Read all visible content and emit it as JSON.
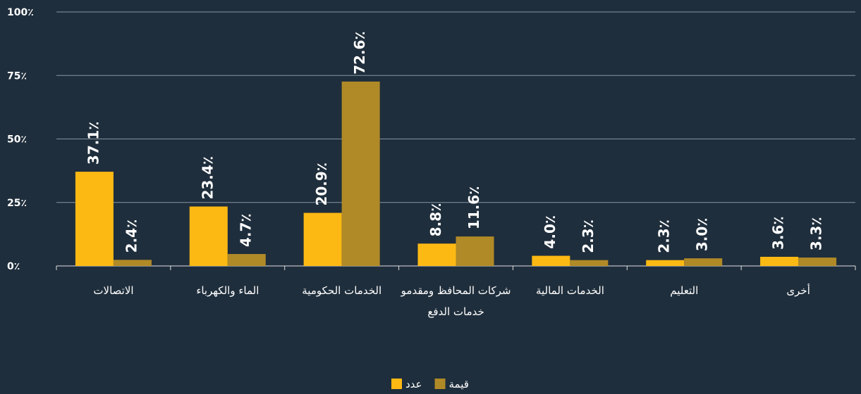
{
  "chart_data": {
    "type": "bar",
    "categories": [
      "الاتصالات",
      "الماء والكهرباء",
      "الخدمات الحكومية",
      "شركات المحافظ ومقدمو خدمات الدفع",
      "الخدمات المالية",
      "التعليم",
      "أخرى"
    ],
    "series": [
      {
        "name": "عدد",
        "color": "#fdb913",
        "values": [
          37.1,
          23.4,
          20.9,
          8.8,
          4.0,
          2.3,
          3.6
        ],
        "value_labels": [
          "37.1٪",
          "23.4٪",
          "20.9٪",
          "8.8٪",
          "4.0٪",
          "2.3٪",
          "3.6٪"
        ]
      },
      {
        "name": "قيمة",
        "color": "#b08a27",
        "values": [
          2.4,
          4.7,
          72.6,
          11.6,
          2.3,
          3.0,
          3.3
        ],
        "value_labels": [
          "2.4٪",
          "4.7٪",
          "72.6٪",
          "11.6٪",
          "2.3٪",
          "3.0٪",
          "3.3٪"
        ]
      }
    ],
    "ylim": [
      0,
      100
    ],
    "yticks": [
      {
        "value": 0,
        "label": "0٪"
      },
      {
        "value": 25,
        "label": "25٪"
      },
      {
        "value": 50,
        "label": "50٪"
      },
      {
        "value": 75,
        "label": "75٪"
      },
      {
        "value": 100,
        "label": "100٪"
      }
    ],
    "grid": true
  }
}
